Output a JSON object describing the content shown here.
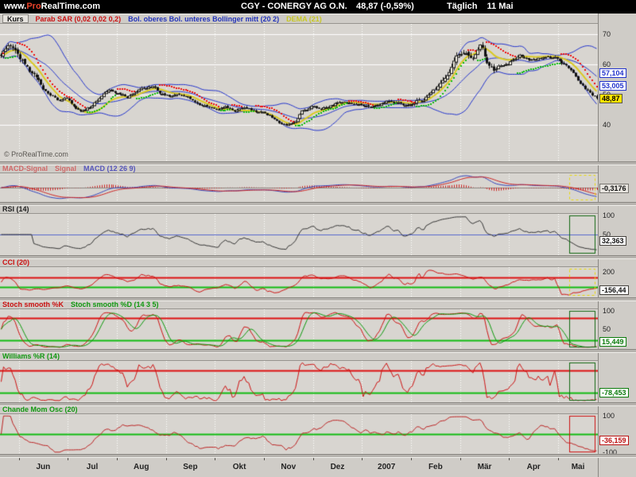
{
  "topbar": {
    "logo_www": "www.",
    "logo_pro": "Pro",
    "logo_rest": "RealTime.com",
    "symbol_title": "CGY - CONERGY AG O.N.",
    "last_price": "48,87",
    "change": "(-0,59%)",
    "timeframe": "Täglich",
    "date": "11 Mai"
  },
  "watermark": "© ProRealTime.com",
  "panels": {
    "main": {
      "tab": "Kurs",
      "legend": [
        {
          "text": "Parab SAR (0,02 0,02 0,2)",
          "color": "#cc1111"
        },
        {
          "text": "Bol. oberes Bol. unteres Bollinger mitt (20 2)",
          "color": "#2233bb"
        },
        {
          "text": "DEMA (21)",
          "color": "#c8c822"
        }
      ]
    },
    "macd": {
      "legend": [
        {
          "text": "MACD-Signal",
          "color": "#d06868"
        },
        {
          "text": "Signal",
          "color": "#d06868"
        },
        {
          "text": "MACD (12 26 9)",
          "color": "#5555bb"
        }
      ]
    },
    "rsi": {
      "legend": [
        {
          "text": "RSI (14)",
          "color": "#222222"
        }
      ]
    },
    "cci": {
      "legend": [
        {
          "text": "CCI (20)",
          "color": "#cc1111"
        }
      ]
    },
    "stoch": {
      "legend": [
        {
          "text": "Stoch smooth %K",
          "color": "#cc1111"
        },
        {
          "text": "Stoch smooth %D (14 3 5)",
          "color": "#119911"
        }
      ]
    },
    "williams": {
      "legend": [
        {
          "text": "Williams %R (14)",
          "color": "#119911"
        }
      ]
    },
    "cmo": {
      "legend": [
        {
          "text": "Chande Mom Osc (20)",
          "color": "#119911"
        }
      ]
    }
  },
  "xaxis": {
    "labels": [
      "Jun",
      "Jul",
      "Aug",
      "Sep",
      "Okt",
      "Nov",
      "Dez",
      "2007",
      "Feb",
      "Mär",
      "Apr",
      "Mai"
    ]
  },
  "chart_data": {
    "price": {
      "type": "candlestick",
      "instrument": "CGY - CONERGY AG O.N.",
      "timeframe": "Täglich",
      "months": [
        "Jun",
        "Jul",
        "Aug",
        "Sep",
        "Okt",
        "Nov",
        "Dez",
        "2007",
        "Feb",
        "Mär",
        "Apr",
        "Mai"
      ],
      "ylim": [
        28,
        73.5
      ],
      "yticks": [
        70,
        60,
        50,
        40
      ],
      "total_days": 256,
      "month_start_days": [
        8,
        29,
        50,
        71,
        92,
        113,
        134,
        155,
        176,
        197,
        218,
        239
      ],
      "close_anchors": [
        [
          0,
          63
        ],
        [
          4,
          66
        ],
        [
          7,
          63
        ],
        [
          10,
          60
        ],
        [
          13,
          57
        ],
        [
          17,
          53
        ],
        [
          21,
          50
        ],
        [
          25,
          48
        ],
        [
          28,
          49
        ],
        [
          31,
          46
        ],
        [
          34,
          44.5
        ],
        [
          38,
          46
        ],
        [
          42,
          49
        ],
        [
          46,
          52
        ],
        [
          50,
          51
        ],
        [
          54,
          49.5
        ],
        [
          58,
          51
        ],
        [
          62,
          52.5
        ],
        [
          65,
          53
        ],
        [
          68,
          51
        ],
        [
          72,
          49.5
        ],
        [
          76,
          50.5
        ],
        [
          80,
          49
        ],
        [
          84,
          47.5
        ],
        [
          88,
          46
        ],
        [
          92,
          44.5
        ],
        [
          96,
          45.5
        ],
        [
          100,
          44.5
        ],
        [
          104,
          46
        ],
        [
          108,
          45
        ],
        [
          112,
          44
        ],
        [
          116,
          42.5
        ],
        [
          119,
          40.8
        ],
        [
          122,
          40
        ],
        [
          126,
          41.5
        ],
        [
          129,
          45
        ],
        [
          133,
          46
        ],
        [
          137,
          45
        ],
        [
          141,
          46.5
        ],
        [
          145,
          47.5
        ],
        [
          149,
          48
        ],
        [
          153,
          47
        ],
        [
          157,
          46
        ],
        [
          161,
          46.5
        ],
        [
          165,
          47.5
        ],
        [
          169,
          47
        ],
        [
          173,
          46.5
        ],
        [
          177,
          47.5
        ],
        [
          181,
          48.5
        ],
        [
          185,
          51
        ],
        [
          189,
          55
        ],
        [
          193,
          60
        ],
        [
          196,
          63
        ],
        [
          199,
          65
        ],
        [
          202,
          63
        ],
        [
          205,
          66
        ],
        [
          208,
          61
        ],
        [
          211,
          57
        ],
        [
          214,
          58.5
        ],
        [
          218,
          61
        ],
        [
          222,
          62.5
        ],
        [
          226,
          62
        ],
        [
          230,
          63
        ],
        [
          234,
          62.5
        ],
        [
          238,
          62
        ],
        [
          241,
          60
        ],
        [
          244,
          58
        ],
        [
          247,
          55
        ],
        [
          250,
          52
        ],
        [
          253,
          50
        ],
        [
          255,
          48.87
        ]
      ],
      "overlays": {
        "parabolic_sar": {
          "params": "0,02 0,02 0,2",
          "up_color": "#11bb11",
          "down_color": "#ee1111"
        },
        "bollinger": {
          "params": "20 2",
          "color": "#2233cc",
          "upper_last": "57,104",
          "mid_last": "53,005",
          "box_style": {
            "bg": "#ffffff",
            "border": "#2233cc",
            "color": "#2233cc"
          }
        },
        "dema": {
          "params": "21",
          "color": "#d9c922"
        }
      },
      "last_close": "48,87",
      "last_box": {
        "bg": "#ffe600",
        "border": "#55524d",
        "color": "#000000"
      }
    },
    "macd": {
      "type": "line",
      "name": "MACD (12 26 9)",
      "last": "-0,3176",
      "ylim": "auto",
      "yticks": [],
      "colors": {
        "macd": "#3344bb",
        "signal": "#cc2222",
        "histogram": "#cc2222"
      },
      "value_style": {
        "bg": "#e6e3de",
        "border": "#77746f",
        "color": "#111111"
      },
      "selection_box": {
        "color": "#e8d800",
        "dashed": true
      }
    },
    "rsi": {
      "type": "line",
      "name": "RSI (14)",
      "last": "32,363",
      "ylim": [
        -4,
        104
      ],
      "yticks": [
        100,
        50
      ],
      "color": "#333333",
      "ref_lines": [
        {
          "value": 50,
          "color": "#5566cc",
          "width": 1
        }
      ],
      "value_style": {
        "bg": "#ffffff",
        "border": "#44413c",
        "color": "#111111"
      },
      "selection_box": {
        "color": "#116611",
        "dashed": false
      }
    },
    "cci": {
      "type": "line",
      "name": "CCI (20)",
      "last": "-156,44",
      "ylim": [
        -300,
        300
      ],
      "yticks": [
        200
      ],
      "color": "#cc1111",
      "ref_lines": [
        {
          "value": 100,
          "color": "#dd1111",
          "width": 2
        },
        {
          "value": -100,
          "color": "#11bb11",
          "width": 2
        }
      ],
      "value_style": {
        "bg": "#ffffff",
        "border": "#44413c",
        "color": "#111111"
      },
      "selection_box": {
        "color": "#e8d800",
        "dashed": true
      }
    },
    "stoch": {
      "type": "line",
      "name": "Stoch smooth %K %D (14 3 5)",
      "last": "15,449",
      "ylim": [
        -4,
        104
      ],
      "yticks": [
        100,
        50
      ],
      "colors": {
        "k": "#cc1111",
        "d": "#0a990a"
      },
      "ref_lines": [
        {
          "value": 80,
          "color": "#dd1111",
          "width": 2
        },
        {
          "value": 20,
          "color": "#11bb11",
          "width": 2
        }
      ],
      "value_style": {
        "bg": "#ffffff",
        "border": "#0a7a0a",
        "color": "#0a7a0a"
      },
      "selection_box": {
        "color": "#116611",
        "dashed": false
      }
    },
    "williams": {
      "type": "line",
      "name": "Williams %R (14)",
      "last": "-78,453",
      "ylim": [
        -104,
        4
      ],
      "yticks": [],
      "color": "#cc1111",
      "ref_lines": [
        {
          "value": -20,
          "color": "#dd1111",
          "width": 2
        },
        {
          "value": -80,
          "color": "#11bb11",
          "width": 2
        }
      ],
      "value_style": {
        "bg": "#ffffff",
        "border": "#0a7a0a",
        "color": "#0a7a0a"
      },
      "selection_box": {
        "color": "#116611",
        "dashed": false
      }
    },
    "cmo": {
      "type": "line",
      "name": "Chande Mom Osc (20)",
      "last": "-36,159",
      "ylim": [
        -110,
        110
      ],
      "yticks": [
        100,
        -100
      ],
      "color": "#bb2222",
      "ref_lines": [
        {
          "value": 0,
          "color": "#11bb11",
          "width": 2
        }
      ],
      "value_style": {
        "bg": "#ffffff",
        "border": "#bb1111",
        "color": "#bb1111"
      },
      "selection_box": {
        "color": "#cc1111",
        "dashed": false
      }
    }
  }
}
